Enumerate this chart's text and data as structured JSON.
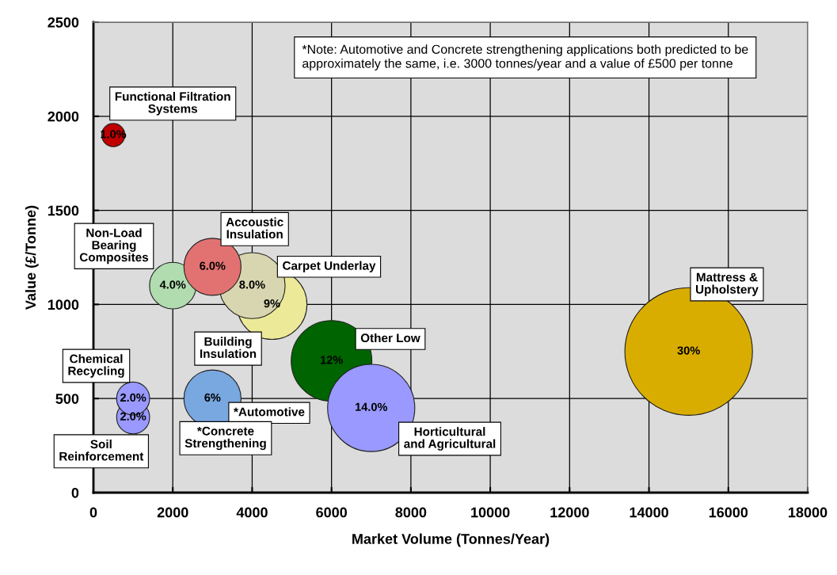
{
  "chart_data": {
    "type": "bubble",
    "xlabel": "Market Volume (Tonnes/Year)",
    "ylabel": "Value (£/Tonne)",
    "x": [
      500,
      2000,
      4500,
      4000,
      3000,
      6000,
      7000,
      1000,
      1000,
      3000,
      15000
    ],
    "values": [
      1900,
      1100,
      1000,
      1100,
      1200,
      700,
      450,
      400,
      500,
      500,
      750
    ],
    "sizes": [
      0.033,
      0.133,
      0.3,
      0.267,
      0.2,
      0.4,
      0.467,
      0.067,
      0.067,
      0.2,
      1
    ],
    "colors": [
      "#c00000",
      "#b0dcb0",
      "#ecea98",
      "#d8d6b0",
      "#e27272",
      "#006400",
      "#9999ff",
      "#9999ff",
      "#9999ff",
      "#79a7e0",
      "#d9ad00"
    ],
    "xlim": [
      0,
      18000
    ],
    "xticks": [
      0,
      2000,
      4000,
      6000,
      8000,
      10000,
      12000,
      14000,
      16000,
      18000
    ],
    "ylim": [
      0,
      2500
    ],
    "yticks": [
      0,
      500,
      1000,
      1500,
      2000,
      2500
    ],
    "grid": true,
    "annotations": [
      "*Note: Automotive and Concrete strengthening applications both predicted to be\napproximately the same, i.e. 3000 tonnes/year and a value of £500 per tonne",
      "Functional Filtration\nSystems",
      "Non-Load\nBearing\nComposites",
      "Accoustic\nInsulation",
      "Carpet Underlay",
      "Building\nInsulation",
      "Other Low",
      "Chemical\nRecycling",
      "Soil\nReinforcement",
      "*Automotive",
      "*Concrete\nStrengthening",
      "Horticultural\nand Agricultural",
      "Mattress &\nUpholstery",
      {
        "text": "1.0%",
        "x": 500,
        "y": 1900
      },
      {
        "text": "4.0%",
        "x": 2000,
        "y": 1100
      },
      {
        "text": "9%",
        "x": 4500,
        "y": 1000
      },
      {
        "text": "8.0%",
        "x": 4000,
        "y": 1100
      },
      {
        "text": "6.0%",
        "x": 3000,
        "y": 1200
      },
      {
        "text": "12%",
        "x": 6000,
        "y": 700
      },
      {
        "text": "14.0%",
        "x": 7000,
        "y": 450
      },
      {
        "text": "2.0%",
        "x": 1000,
        "y": 400
      },
      {
        "text": "2.0%",
        "x": 1000,
        "y": 500
      },
      {
        "text": "6%",
        "x": 3000,
        "y": 500
      },
      {
        "text": "30%",
        "x": 15000,
        "y": 750
      }
    ]
  }
}
